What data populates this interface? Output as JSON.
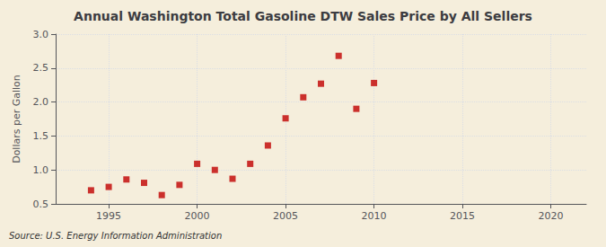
{
  "chart_data": {
    "type": "scatter",
    "title": "Annual Washington Total Gasoline DTW Sales Price by All Sellers",
    "ylabel": "Dollars per Gallon",
    "source": "Source: U.S. Energy Information Administration",
    "x": [
      1994,
      1995,
      1996,
      1997,
      1998,
      1999,
      2000,
      2001,
      2002,
      2003,
      2004,
      2005,
      2006,
      2007,
      2008,
      2009,
      2010
    ],
    "values": [
      0.7,
      0.75,
      0.86,
      0.81,
      0.63,
      0.78,
      1.09,
      1.0,
      0.87,
      1.09,
      1.36,
      1.76,
      2.07,
      2.27,
      2.68,
      1.9,
      2.28
    ],
    "color": "#c00000",
    "marker": "square",
    "xlim": [
      1992,
      2022
    ],
    "ylim": [
      0.5,
      3.0
    ],
    "xticks": [
      1995,
      2000,
      2005,
      2010,
      2015,
      2020
    ],
    "yticks": [
      0.5,
      {
        "value": 1.0,
        "label": "1.0"
      },
      1.5,
      {
        "value": 2.0,
        "label": "2.0"
      },
      2.5,
      {
        "value": 3.0,
        "label": "3.0"
      }
    ],
    "grid": true
  }
}
